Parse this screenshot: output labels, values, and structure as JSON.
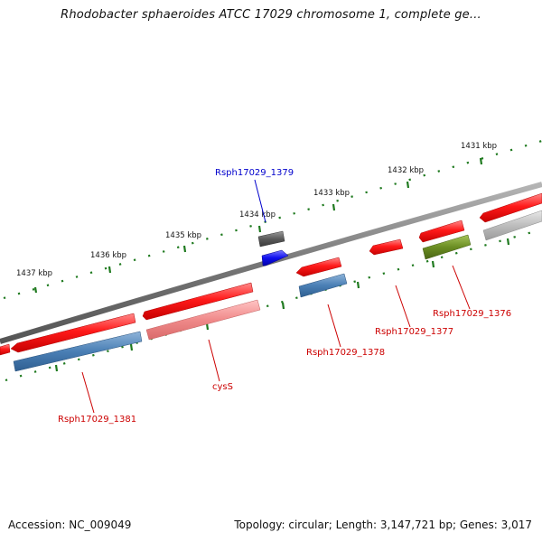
{
  "title": "Rhodobacter sphaeroides ATCC 17029 chromosome 1, complete ge...",
  "footer": {
    "accession": "Accession: NC_009049",
    "summary": "Topology: circular; Length: 3,147,721 bp; Genes: 3,017"
  },
  "colors": {
    "backbone": "#7a7a7a",
    "tick": "#1f7a1f",
    "gene_red": "#ee1111",
    "gene_pink": "#ee8888",
    "gene_steelblue": "#4a7fb5",
    "gene_blue": "#1a1aee",
    "gene_darkgray": "#555555",
    "gene_olive": "#6b8e23",
    "gene_lightgray": "#bbbbbb",
    "label_red": "#cc0000",
    "label_blue": "#0000cc"
  },
  "upper_scale": {
    "labels": [
      "1437 kbp",
      "1436 kbp",
      "1435 kbp",
      "1434 kbp",
      "1433 kbp",
      "1432 kbp",
      "1431 kbp"
    ]
  },
  "gene_labels": [
    {
      "id": "lbl-1379",
      "text": "Rsph17029_1379",
      "color": "blue"
    },
    {
      "id": "lbl-1376",
      "text": "Rsph17029_1376",
      "color": "red"
    },
    {
      "id": "lbl-1377",
      "text": "Rsph17029_1377",
      "color": "red"
    },
    {
      "id": "lbl-1378",
      "text": "Rsph17029_1378",
      "color": "red"
    },
    {
      "id": "lbl-cysS",
      "text": "cysS",
      "color": "red"
    },
    {
      "id": "lbl-1381",
      "text": "Rsph17029_1381",
      "color": "red"
    }
  ]
}
